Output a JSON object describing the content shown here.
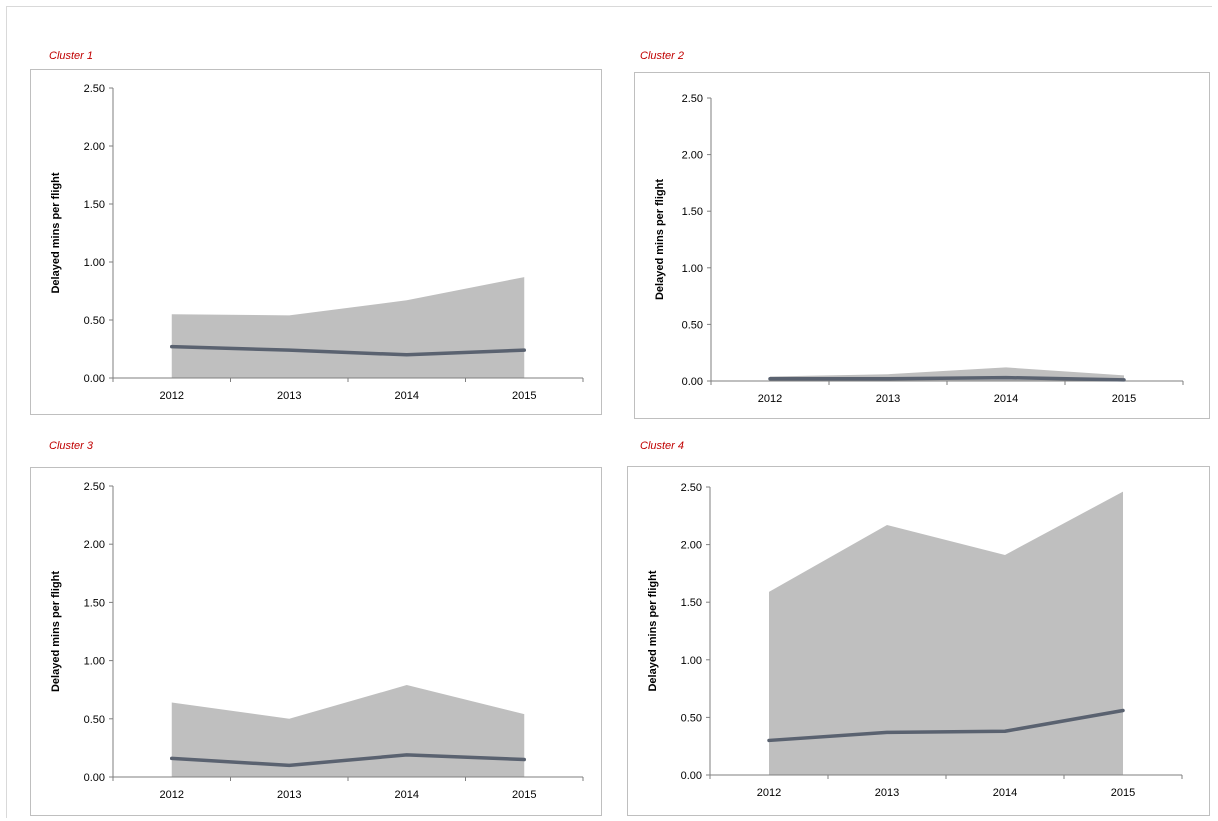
{
  "colors": {
    "title": "#c00000",
    "band_fill": "#bfbfbf",
    "line": "#5a6270",
    "axis": "#7f7f7f"
  },
  "chart_data": [
    {
      "type": "area",
      "title": "Cluster 1",
      "xlabel": "",
      "ylabel": "Delayed mins per flight",
      "categories": [
        "2012",
        "2013",
        "2014",
        "2015"
      ],
      "y_ticks": [
        "0.00",
        "0.50",
        "1.00",
        "1.50",
        "2.00",
        "2.50"
      ],
      "ylim": [
        0,
        2.5
      ],
      "grid": false,
      "series": [
        {
          "kind": "area",
          "values": [
            0.55,
            0.54,
            0.67,
            0.87
          ]
        },
        {
          "kind": "line",
          "values": [
            0.27,
            0.24,
            0.2,
            0.24
          ]
        }
      ]
    },
    {
      "type": "area",
      "title": "Cluster 2",
      "xlabel": "",
      "ylabel": "Delayed mins per flight",
      "categories": [
        "2012",
        "2013",
        "2014",
        "2015"
      ],
      "y_ticks": [
        "0.00",
        "0.50",
        "1.00",
        "1.50",
        "2.00",
        "2.50"
      ],
      "ylim": [
        0,
        2.5
      ],
      "grid": false,
      "series": [
        {
          "kind": "area",
          "values": [
            0.04,
            0.06,
            0.12,
            0.05
          ]
        },
        {
          "kind": "line",
          "values": [
            0.02,
            0.02,
            0.03,
            0.01
          ]
        }
      ]
    },
    {
      "type": "area",
      "title": "Cluster 3",
      "xlabel": "",
      "ylabel": "Delayed mins per flight",
      "categories": [
        "2012",
        "2013",
        "2014",
        "2015"
      ],
      "y_ticks": [
        "0.00",
        "0.50",
        "1.00",
        "1.50",
        "2.00",
        "2.50"
      ],
      "ylim": [
        0,
        2.5
      ],
      "grid": false,
      "series": [
        {
          "kind": "area",
          "values": [
            0.64,
            0.5,
            0.79,
            0.54
          ]
        },
        {
          "kind": "line",
          "values": [
            0.16,
            0.1,
            0.19,
            0.15
          ]
        }
      ]
    },
    {
      "type": "area",
      "title": "Cluster 4",
      "xlabel": "",
      "ylabel": "Delayed mins per flight",
      "categories": [
        "2012",
        "2013",
        "2014",
        "2015"
      ],
      "y_ticks": [
        "0.00",
        "0.50",
        "1.00",
        "1.50",
        "2.00",
        "2.50"
      ],
      "ylim": [
        0,
        2.5
      ],
      "grid": false,
      "series": [
        {
          "kind": "area",
          "values": [
            1.59,
            2.17,
            1.91,
            2.46
          ]
        },
        {
          "kind": "line",
          "values": [
            0.3,
            0.37,
            0.38,
            0.56
          ]
        }
      ]
    }
  ]
}
